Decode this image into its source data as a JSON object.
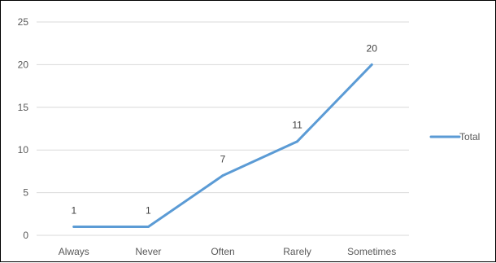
{
  "chart_data": {
    "type": "line",
    "categories": [
      "Always",
      "Never",
      "Often",
      "Rarely",
      "Sometimes"
    ],
    "series": [
      {
        "name": "Total",
        "values": [
          1,
          1,
          7,
          11,
          20
        ],
        "color": "#5B9BD5"
      }
    ],
    "ylim": [
      0,
      25
    ],
    "yticks": [
      "0",
      "5",
      "10",
      "15",
      "20",
      "25"
    ],
    "grid": true,
    "legend_position": "right",
    "data_labels": true,
    "gridline_color": "#D9D9D9",
    "axis_text_color": "#595959"
  }
}
